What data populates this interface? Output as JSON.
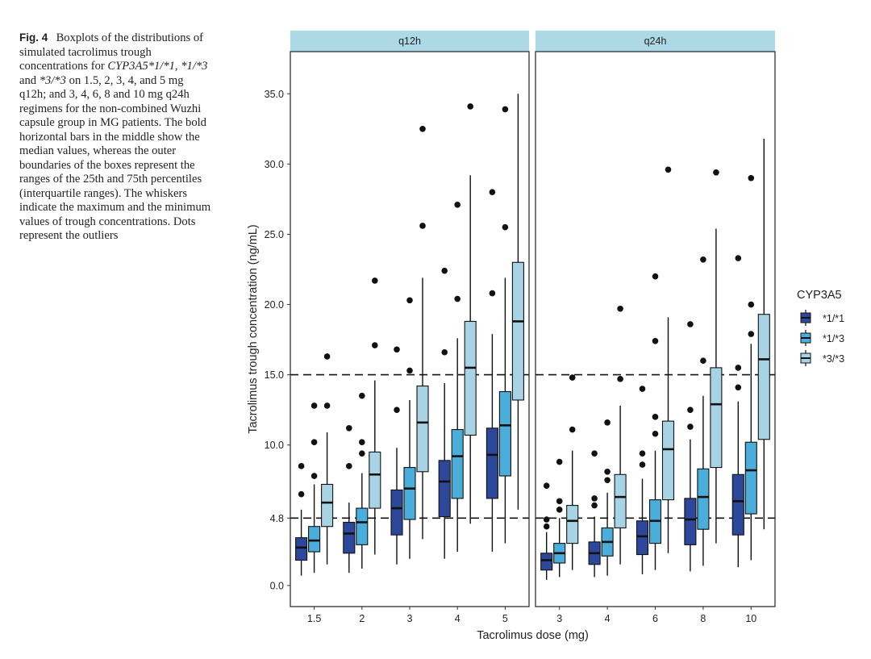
{
  "caption": {
    "label": "Fig. 4",
    "seg1": "Boxplots of the distributions of simulated tacrolimus trough concentrations for",
    "genotypes_text": "CYP3A5*1/*1, *1/*3",
    "seg2": "and",
    "genotype_last": "*3/*3",
    "seg3": "on 1.5, 2, 3, 4, and 5 mg q12h; and 3, 4, 6, 8 and 10 mg q24h regimens for the non-combined Wuzhi capsule group in MG patients. The bold horizontal bars in the middle show the median values, whereas the outer boundaries of the boxes represent the ranges of the 25th and 75th percentiles (interquartile ranges). The whiskers indicate the maximum and the minimum values of trough concentrations. Dots represent the outliers"
  },
  "chart_data": {
    "type": "boxplot",
    "ylabel": "Tacrolimus trough concentration (ng/mL)",
    "xlabel": "Tacrolimus dose (mg)",
    "ylim": [
      -1.5,
      38
    ],
    "yticks": [
      0.0,
      4.8,
      10.0,
      15.0,
      20.0,
      25.0,
      30.0,
      35.0
    ],
    "ytick_labels": [
      "0.0",
      "4.8",
      "10.0",
      "15.0",
      "20.0",
      "25.0",
      "30.0",
      "35.0"
    ],
    "reference_lines": [
      4.8,
      15.0
    ],
    "legend": {
      "title": "CYP3A5",
      "entries": [
        {
          "label": "*1/*1",
          "color": "#2d479a"
        },
        {
          "label": "*1/*3",
          "color": "#4badd9"
        },
        {
          "label": "*3/*3",
          "color": "#a8d3e4"
        }
      ]
    },
    "colors": {
      "strip": "#add8e6",
      "panel_border": "#222222",
      "box_outline": "#111111",
      "text": "#222222"
    },
    "panels": [
      {
        "title": "q12h",
        "categories": [
          "1.5",
          "2",
          "3",
          "4",
          "5"
        ],
        "groups": [
          [
            {
              "min": 0.7,
              "q1": 1.8,
              "median": 2.7,
              "q3": 3.4,
              "max": 5.4,
              "outliers": [
                6.5,
                8.5
              ]
            },
            {
              "min": 0.9,
              "q1": 2.4,
              "median": 3.2,
              "q3": 4.2,
              "max": 7.2,
              "outliers": [
                7.8,
                10.2,
                12.8
              ]
            },
            {
              "min": 1.5,
              "q1": 4.2,
              "median": 5.9,
              "q3": 7.2,
              "max": 10.9,
              "outliers": [
                12.8,
                16.3
              ]
            }
          ],
          [
            {
              "min": 0.9,
              "q1": 2.3,
              "median": 3.7,
              "q3": 4.5,
              "max": 5.9,
              "outliers": [
                8.5,
                11.2
              ]
            },
            {
              "min": 1.2,
              "q1": 2.9,
              "median": 4.5,
              "q3": 5.5,
              "max": 8.0,
              "outliers": [
                9.4,
                10.2,
                13.5
              ]
            },
            {
              "min": 2.2,
              "q1": 5.5,
              "median": 7.9,
              "q3": 9.5,
              "max": 14.6,
              "outliers": [
                17.1,
                21.7
              ]
            }
          ],
          [
            {
              "min": 1.5,
              "q1": 3.6,
              "median": 5.5,
              "q3": 6.8,
              "max": 9.8,
              "outliers": [
                12.5,
                16.8
              ]
            },
            {
              "min": 1.9,
              "q1": 4.7,
              "median": 6.9,
              "q3": 8.4,
              "max": 13.2,
              "outliers": [
                15.3,
                20.3
              ]
            },
            {
              "min": 3.3,
              "q1": 8.1,
              "median": 11.6,
              "q3": 14.2,
              "max": 21.9,
              "outliers": [
                25.6,
                32.5
              ]
            }
          ],
          [
            {
              "min": 1.9,
              "q1": 4.9,
              "median": 7.4,
              "q3": 8.9,
              "max": 14.4,
              "outliers": [
                16.6,
                22.4
              ]
            },
            {
              "min": 2.4,
              "q1": 6.2,
              "median": 9.2,
              "q3": 11.1,
              "max": 17.6,
              "outliers": [
                20.4,
                27.1
              ]
            },
            {
              "min": 4.4,
              "q1": 10.7,
              "median": 15.5,
              "q3": 18.8,
              "max": 29.2,
              "outliers": [
                34.1
              ]
            }
          ],
          [
            {
              "min": 2.4,
              "q1": 6.2,
              "median": 9.3,
              "q3": 11.2,
              "max": 17.9,
              "outliers": [
                20.8,
                28.0
              ]
            },
            {
              "min": 3.0,
              "q1": 7.8,
              "median": 11.4,
              "q3": 13.8,
              "max": 21.9,
              "outliers": [
                25.5,
                33.9
              ]
            },
            {
              "min": 5.4,
              "q1": 13.2,
              "median": 18.8,
              "q3": 23.0,
              "max": 35.0,
              "outliers": []
            }
          ]
        ]
      },
      {
        "title": "q24h",
        "categories": [
          "3",
          "4",
          "6",
          "8",
          "10"
        ],
        "groups": [
          [
            {
              "min": 0.4,
              "q1": 1.1,
              "median": 1.8,
              "q3": 2.3,
              "max": 3.8,
              "outliers": [
                4.2,
                4.7,
                7.1
              ]
            },
            {
              "min": 0.6,
              "q1": 1.6,
              "median": 2.3,
              "q3": 3.0,
              "max": 4.8,
              "outliers": [
                5.4,
                6.0,
                8.8
              ]
            },
            {
              "min": 1.1,
              "q1": 3.0,
              "median": 4.6,
              "q3": 5.7,
              "max": 9.6,
              "outliers": [
                11.1,
                14.8
              ]
            }
          ],
          [
            {
              "min": 0.6,
              "q1": 1.5,
              "median": 2.3,
              "q3": 3.1,
              "max": 4.9,
              "outliers": [
                5.7,
                6.2,
                9.4
              ]
            },
            {
              "min": 0.7,
              "q1": 2.1,
              "median": 3.1,
              "q3": 4.1,
              "max": 6.6,
              "outliers": [
                7.5,
                8.1,
                11.6
              ]
            },
            {
              "min": 1.5,
              "q1": 4.1,
              "median": 6.3,
              "q3": 7.9,
              "max": 12.8,
              "outliers": [
                14.7,
                19.7
              ]
            }
          ],
          [
            {
              "min": 0.8,
              "q1": 2.2,
              "median": 3.5,
              "q3": 4.6,
              "max": 7.6,
              "outliers": [
                8.6,
                9.4,
                14.0
              ]
            },
            {
              "min": 1.1,
              "q1": 3.0,
              "median": 4.6,
              "q3": 6.1,
              "max": 9.6,
              "outliers": [
                10.8,
                12.0,
                17.4,
                22.0
              ]
            },
            {
              "min": 2.3,
              "q1": 6.1,
              "median": 9.7,
              "q3": 11.7,
              "max": 19.1,
              "outliers": [
                29.6
              ]
            }
          ],
          [
            {
              "min": 1.0,
              "q1": 2.9,
              "median": 4.7,
              "q3": 6.2,
              "max": 10.4,
              "outliers": [
                11.3,
                12.5,
                18.6
              ]
            },
            {
              "min": 1.4,
              "q1": 4.0,
              "median": 6.3,
              "q3": 8.3,
              "max": 13.5,
              "outliers": [
                16.0,
                23.2
              ]
            },
            {
              "min": 3.0,
              "q1": 8.4,
              "median": 12.9,
              "q3": 15.5,
              "max": 25.4,
              "outliers": [
                29.4
              ]
            }
          ],
          [
            {
              "min": 1.3,
              "q1": 3.6,
              "median": 6.0,
              "q3": 7.9,
              "max": 13.1,
              "outliers": [
                14.1,
                15.5,
                23.3
              ]
            },
            {
              "min": 1.8,
              "q1": 5.1,
              "median": 8.2,
              "q3": 10.2,
              "max": 17.2,
              "outliers": [
                17.9,
                20.0,
                29.0
              ]
            },
            {
              "min": 4.0,
              "q1": 10.4,
              "median": 16.1,
              "q3": 19.3,
              "max": 31.8,
              "outliers": []
            }
          ]
        ]
      }
    ]
  }
}
